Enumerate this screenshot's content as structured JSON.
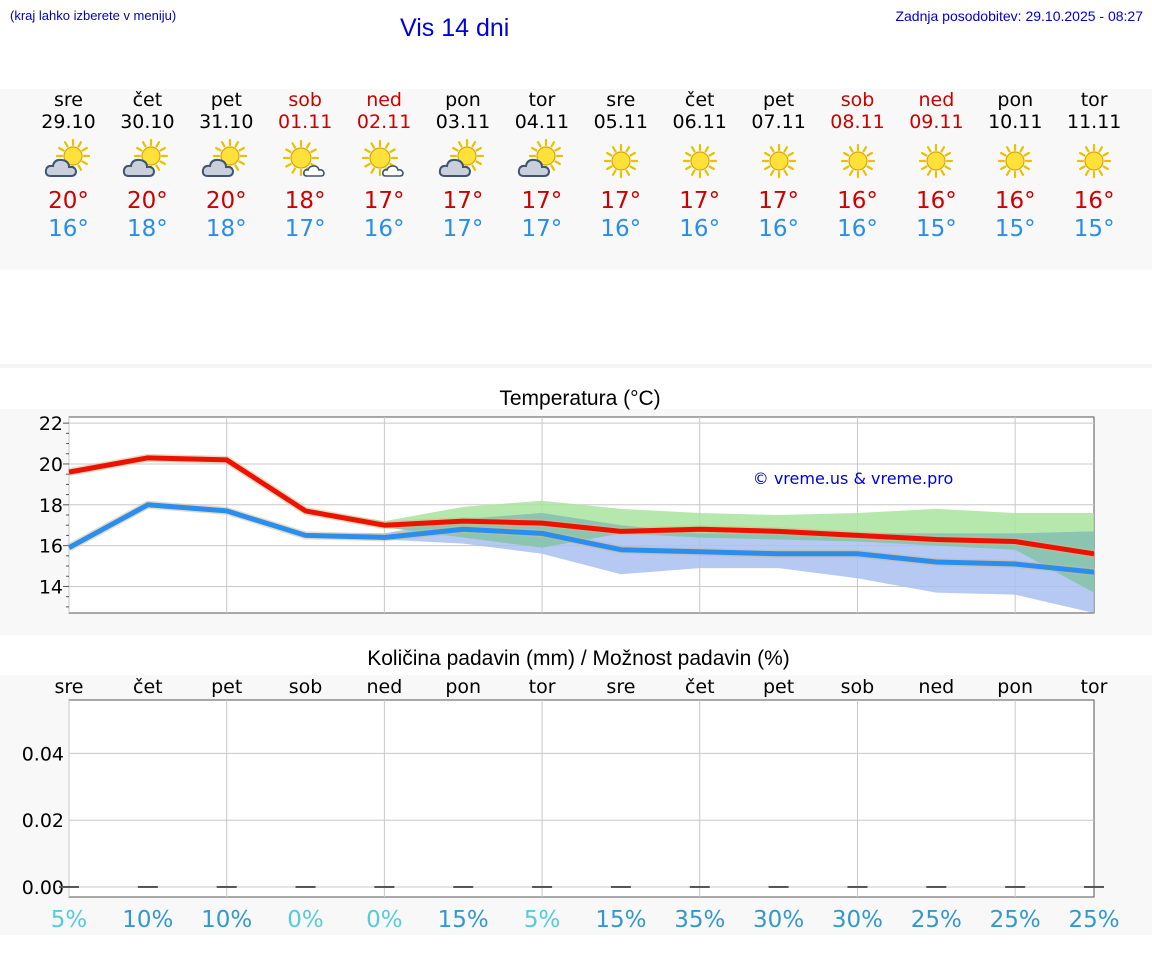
{
  "header": {
    "left_note": "(kraj lahko izberete v meniju)",
    "title": "Vis 14 dni",
    "updated": "Zadnja posodobitev: 29.10.2025 - 08:27"
  },
  "days": [
    {
      "name": "sre",
      "date": "29.10",
      "weekend": false,
      "icon": "sun-behind-cloud-icon",
      "tmax": "20°",
      "tmin": "16°"
    },
    {
      "name": "čet",
      "date": "30.10",
      "weekend": false,
      "icon": "sun-behind-cloud-icon",
      "tmax": "20°",
      "tmin": "18°"
    },
    {
      "name": "pet",
      "date": "31.10",
      "weekend": false,
      "icon": "sun-behind-cloud-icon",
      "tmax": "20°",
      "tmin": "18°"
    },
    {
      "name": "sob",
      "date": "01.11",
      "weekend": true,
      "icon": "sun-small-cloud-icon",
      "tmax": "18°",
      "tmin": "17°"
    },
    {
      "name": "ned",
      "date": "02.11",
      "weekend": true,
      "icon": "sun-small-cloud-icon",
      "tmax": "17°",
      "tmin": "16°"
    },
    {
      "name": "pon",
      "date": "03.11",
      "weekend": false,
      "icon": "sun-behind-cloud-icon",
      "tmax": "17°",
      "tmin": "17°"
    },
    {
      "name": "tor",
      "date": "04.11",
      "weekend": false,
      "icon": "sun-behind-cloud-icon",
      "tmax": "17°",
      "tmin": "17°"
    },
    {
      "name": "sre",
      "date": "05.11",
      "weekend": false,
      "icon": "sun-icon",
      "tmax": "17°",
      "tmin": "16°"
    },
    {
      "name": "čet",
      "date": "06.11",
      "weekend": false,
      "icon": "sun-icon",
      "tmax": "17°",
      "tmin": "16°"
    },
    {
      "name": "pet",
      "date": "07.11",
      "weekend": false,
      "icon": "sun-icon",
      "tmax": "17°",
      "tmin": "16°"
    },
    {
      "name": "sob",
      "date": "08.11",
      "weekend": true,
      "icon": "sun-icon",
      "tmax": "16°",
      "tmin": "16°"
    },
    {
      "name": "ned",
      "date": "09.11",
      "weekend": true,
      "icon": "sun-icon",
      "tmax": "16°",
      "tmin": "15°"
    },
    {
      "name": "pon",
      "date": "10.11",
      "weekend": false,
      "icon": "sun-icon",
      "tmax": "16°",
      "tmin": "15°"
    },
    {
      "name": "tor",
      "date": "11.11",
      "weekend": false,
      "icon": "sun-icon",
      "tmax": "16°",
      "tmin": "15°"
    }
  ],
  "colors": {
    "max_line": "#ee1100",
    "min_line": "#2a8ef0",
    "max_band": "#a9e4a0",
    "min_band": "#a8bff0",
    "overlap_band": "#86c4a8",
    "weekend_text": "#cc0000",
    "pct_light": "#55ccdd",
    "pct_dark": "#3399cc"
  },
  "chart_data": [
    {
      "type": "line",
      "title": "Temperatura (°C)",
      "ylim": [
        12.7,
        22.3
      ],
      "yticks": [
        "22",
        "20",
        "18",
        "16",
        "14"
      ],
      "ytick_values": [
        22,
        20,
        18,
        16,
        14
      ],
      "x": [
        0,
        1,
        2,
        3,
        4,
        5,
        6,
        7,
        8,
        9,
        10,
        11,
        12,
        13
      ],
      "watermark": "© vreme.us & vreme.pro",
      "series": [
        {
          "name": "max",
          "values": [
            19.6,
            20.3,
            20.2,
            17.7,
            17.0,
            17.2,
            17.1,
            16.7,
            16.8,
            16.7,
            16.5,
            16.3,
            16.2,
            15.6
          ]
        },
        {
          "name": "min",
          "values": [
            15.9,
            18.0,
            17.7,
            16.5,
            16.4,
            16.8,
            16.6,
            15.8,
            15.7,
            15.6,
            15.6,
            15.2,
            15.1,
            14.7
          ]
        },
        {
          "name": "max_band_upper",
          "values": [
            19.7,
            20.4,
            20.3,
            17.8,
            17.2,
            17.9,
            18.2,
            17.8,
            17.6,
            17.5,
            17.6,
            17.8,
            17.6,
            17.6
          ]
        },
        {
          "name": "max_band_lower",
          "values": [
            19.5,
            20.2,
            20.1,
            17.6,
            16.9,
            16.4,
            15.9,
            16.6,
            16.4,
            16.3,
            16.2,
            16.0,
            15.8,
            13.7
          ]
        },
        {
          "name": "min_band_upper",
          "values": [
            16.0,
            18.1,
            17.8,
            16.6,
            16.6,
            17.3,
            17.6,
            17.0,
            16.6,
            16.6,
            16.6,
            16.6,
            16.6,
            16.7
          ]
        },
        {
          "name": "min_band_lower",
          "values": [
            15.8,
            17.9,
            17.6,
            16.4,
            16.3,
            16.1,
            15.6,
            14.6,
            14.9,
            14.9,
            14.4,
            13.7,
            13.6,
            12.7
          ]
        }
      ]
    },
    {
      "type": "bar",
      "title": "Količina padavin (mm) / Možnost padavin (%)",
      "ylim": [
        -0.003,
        0.056
      ],
      "yticks": [
        "0.04",
        "0.02",
        "0.00"
      ],
      "ytick_values": [
        0.04,
        0.02,
        0.0
      ],
      "categories": [
        "sre",
        "čet",
        "pet",
        "sob",
        "ned",
        "pon",
        "tor",
        "sre",
        "čet",
        "pet",
        "sob",
        "ned",
        "pon",
        "tor"
      ],
      "values": [
        0,
        0,
        0,
        0,
        0,
        0,
        0,
        0,
        0,
        0,
        0,
        0,
        0,
        0
      ],
      "probability": [
        "5%",
        "10%",
        "10%",
        "0%",
        "0%",
        "15%",
        "5%",
        "15%",
        "35%",
        "30%",
        "30%",
        "25%",
        "25%",
        "25%"
      ],
      "probability_values": [
        5,
        10,
        10,
        0,
        0,
        15,
        5,
        15,
        35,
        30,
        30,
        25,
        25,
        25
      ]
    }
  ]
}
